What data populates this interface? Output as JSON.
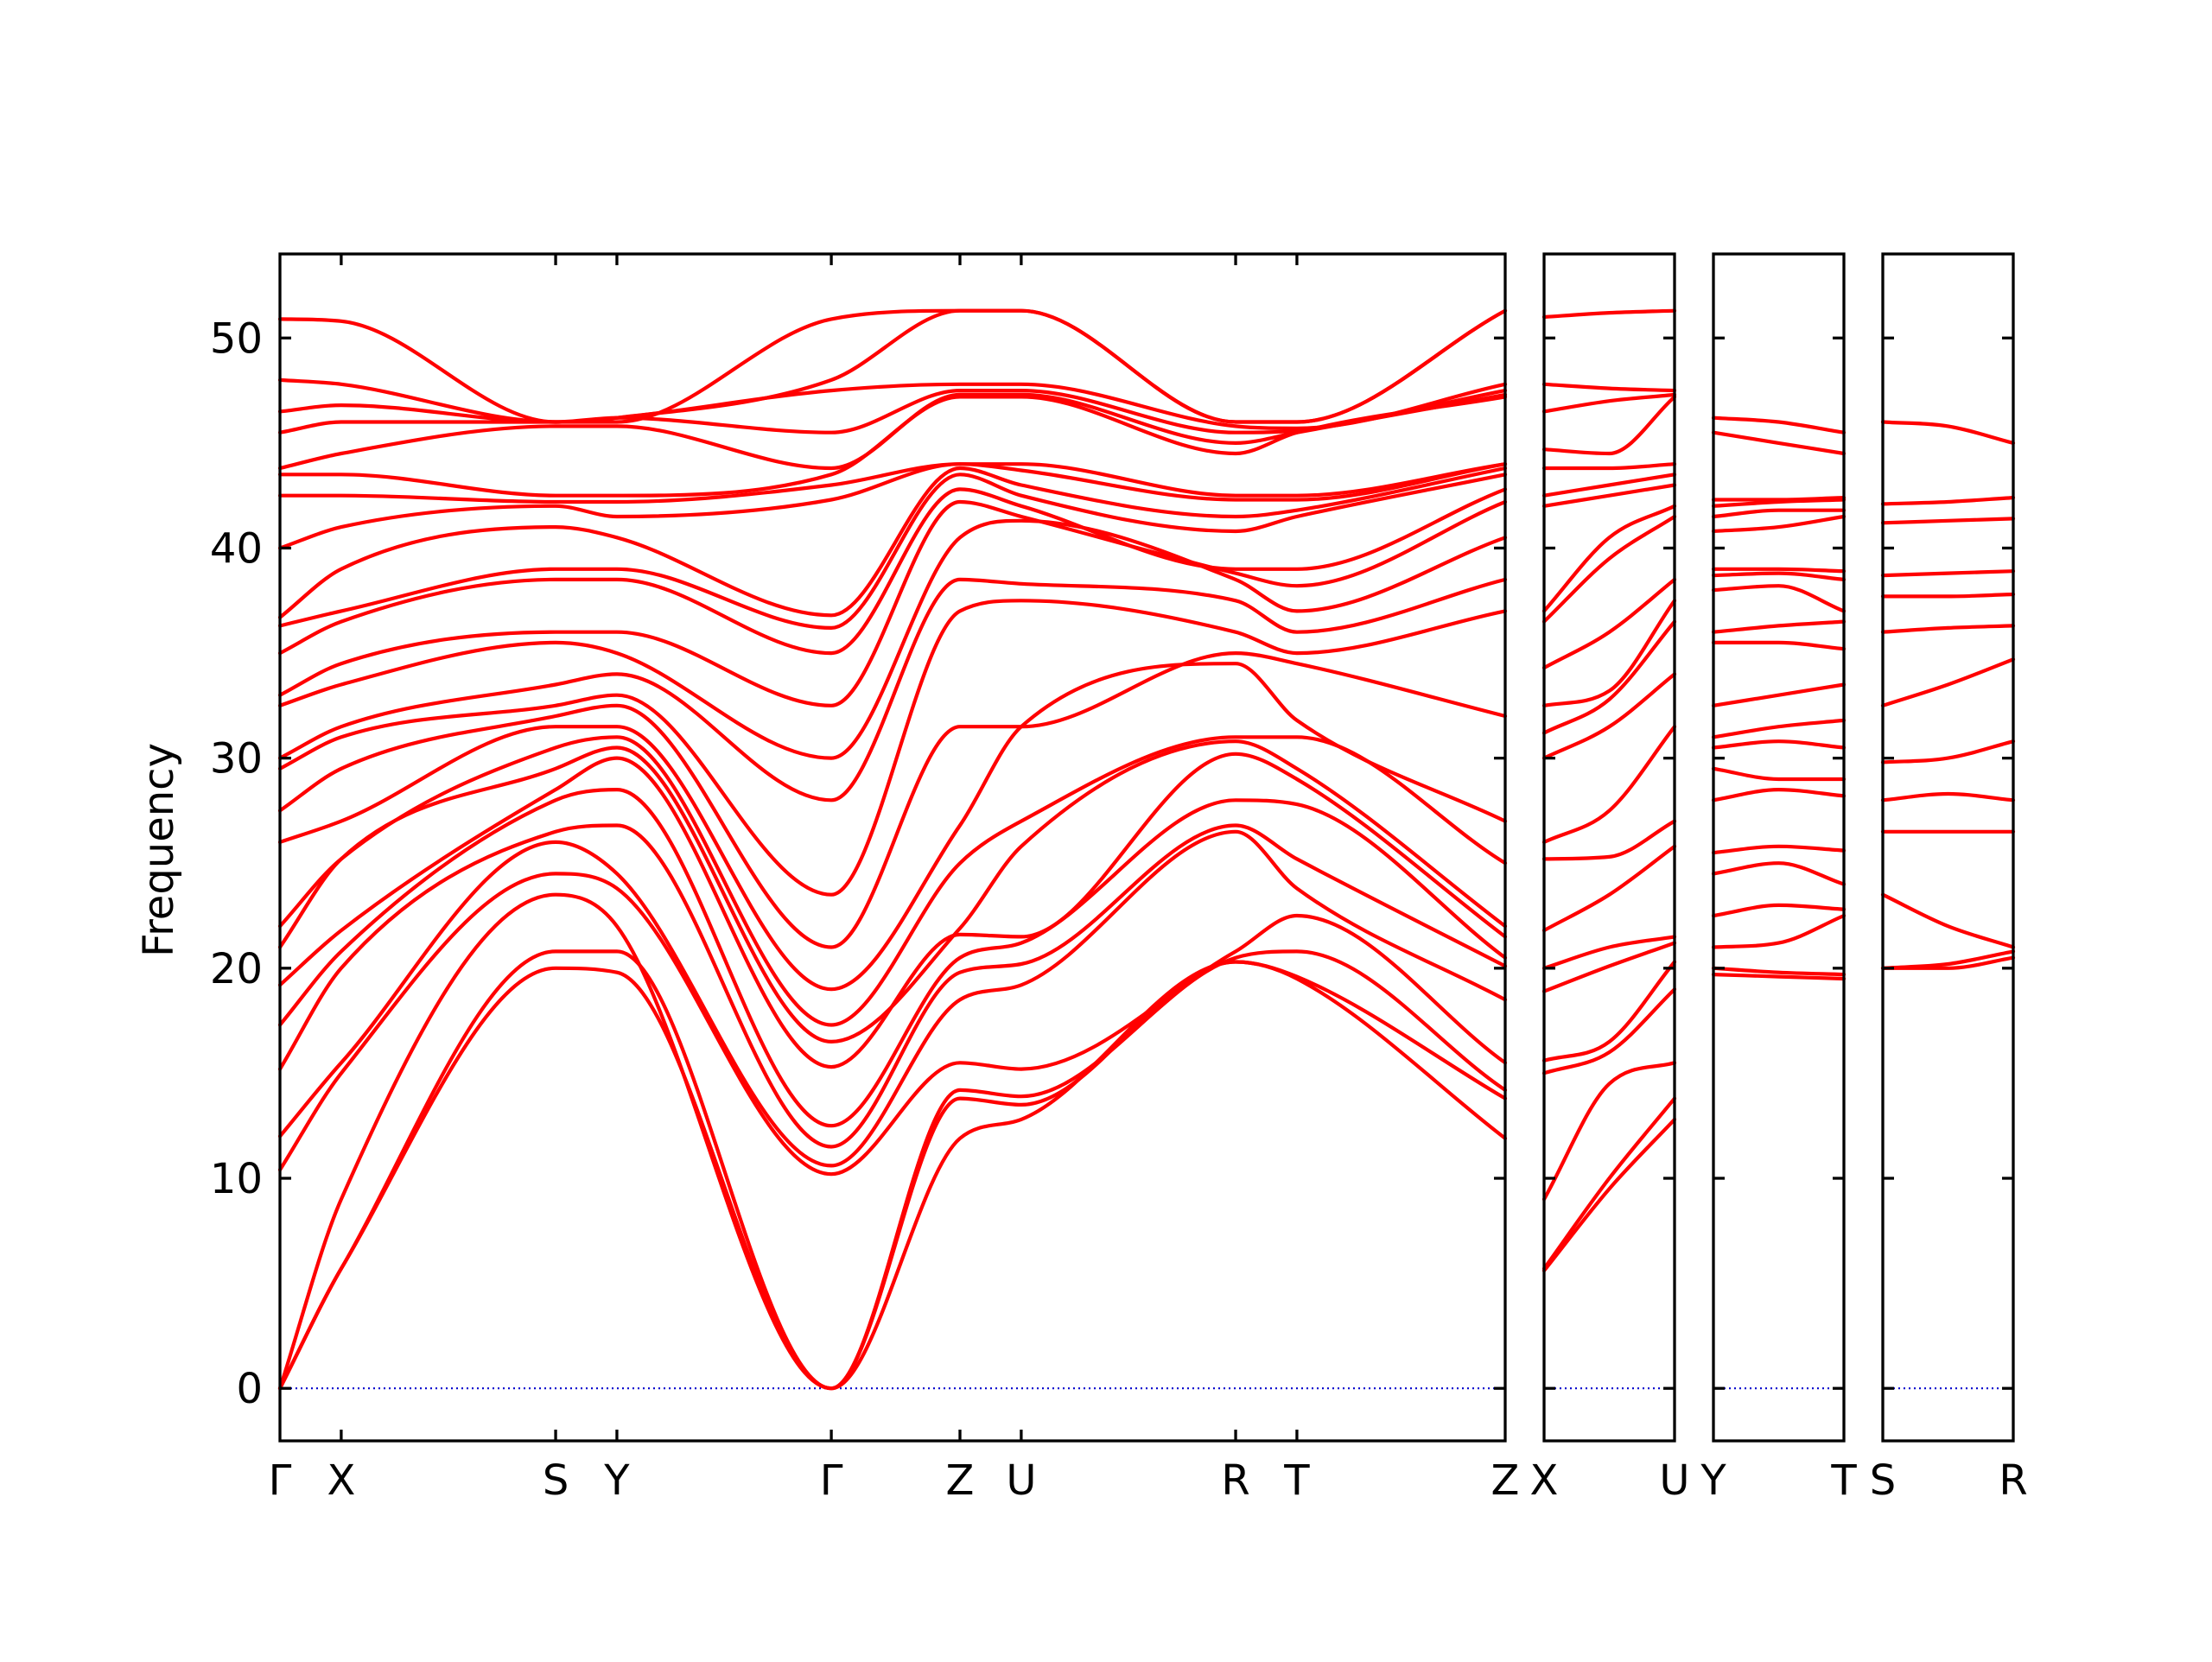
{
  "chart_data": {
    "type": "line",
    "ylabel": "Frequency",
    "ylim": [
      -2.5,
      54
    ],
    "yticks": [
      0,
      10,
      20,
      30,
      40,
      50
    ],
    "band_color": "#ff0000",
    "zero_line_color": "#0000cc",
    "grid": false,
    "legend": "none",
    "panels": [
      {
        "kpoints": [
          {
            "label": "Γ",
            "x": 0.0
          },
          {
            "label": "X",
            "x": 0.05
          },
          {
            "label": "S",
            "x": 0.225
          },
          {
            "label": "Y",
            "x": 0.275
          },
          {
            "label": "Γ",
            "x": 0.45
          },
          {
            "label": "Z",
            "x": 0.555
          },
          {
            "label": "U",
            "x": 0.605
          },
          {
            "label": "R",
            "x": 0.78
          },
          {
            "label": "T",
            "x": 0.83
          },
          {
            "label": "Z",
            "x": 1.0
          }
        ],
        "bands": [
          [
            0.0,
            5.7,
            20.0,
            19.8,
            0.0,
            11.9,
            12.8,
            20.3,
            19.5,
            11.9
          ],
          [
            0.0,
            5.7,
            20.8,
            20.8,
            0.0,
            13.8,
            13.5,
            20.3,
            19.6,
            13.8
          ],
          [
            0.0,
            9.0,
            23.5,
            22.0,
            0.0,
            14.2,
            13.9,
            20.5,
            20.8,
            14.2
          ],
          [
            10.4,
            15.0,
            24.5,
            23.8,
            10.2,
            15.5,
            15.2,
            20.8,
            22.5,
            15.5
          ],
          [
            12.0,
            15.5,
            26.0,
            24.5,
            10.6,
            18.5,
            19.2,
            26.5,
            23.8,
            18.5
          ],
          [
            15.2,
            20.0,
            26.5,
            26.8,
            11.5,
            19.8,
            20.2,
            26.8,
            25.2,
            20.1
          ],
          [
            17.3,
            20.8,
            28.0,
            28.5,
            12.5,
            20.5,
            21.2,
            28.0,
            27.8,
            20.5
          ],
          [
            19.2,
            21.8,
            28.5,
            30.0,
            15.3,
            21.6,
            21.5,
            30.2,
            29.0,
            21.5
          ],
          [
            21.0,
            25.2,
            29.5,
            30.5,
            16.5,
            21.9,
            25.8,
            30.8,
            29.5,
            22.0
          ],
          [
            22.0,
            25.2,
            30.5,
            31.0,
            17.3,
            25.0,
            27.0,
            31.0,
            31.0,
            25.0
          ],
          [
            26.0,
            27.0,
            31.5,
            31.5,
            19.0,
            26.8,
            31.5,
            34.5,
            31.8,
            27.0
          ],
          [
            27.5,
            29.5,
            32.0,
            32.5,
            21.0,
            31.5,
            31.5,
            35.0,
            34.5,
            32.0
          ],
          [
            29.5,
            31.0,
            32.5,
            33.0,
            23.5,
            37.0,
            37.5,
            36.0,
            35.0,
            37.0
          ],
          [
            30.0,
            31.5,
            33.5,
            34.0,
            28.0,
            38.5,
            38.3,
            37.5,
            36.0,
            38.5
          ],
          [
            32.5,
            33.5,
            35.5,
            35.0,
            30.0,
            40.5,
            41.3,
            38.5,
            37.0,
            40.5
          ],
          [
            33.0,
            34.5,
            36.0,
            36.0,
            32.5,
            42.2,
            41.5,
            38.8,
            38.2,
            42.2
          ],
          [
            35.0,
            36.5,
            38.5,
            38.5,
            35.0,
            42.8,
            42.0,
            39.0,
            39.0,
            42.8
          ],
          [
            36.3,
            37.0,
            39.0,
            39.0,
            36.2,
            43.5,
            42.5,
            40.8,
            41.5,
            43.5
          ],
          [
            36.7,
            39.0,
            41.0,
            40.5,
            36.8,
            43.8,
            43.0,
            41.5,
            41.8,
            43.8
          ],
          [
            40.0,
            41.0,
            42.0,
            41.5,
            42.3,
            44.0,
            43.7,
            42.3,
            42.3,
            44.0
          ],
          [
            42.5,
            42.5,
            42.2,
            42.2,
            43.0,
            44.0,
            44.0,
            42.5,
            42.5,
            44.0
          ],
          [
            43.5,
            43.5,
            42.5,
            42.5,
            43.5,
            47.2,
            47.2,
            44.5,
            45.5,
            47.2
          ],
          [
            43.8,
            44.5,
            45.8,
            45.8,
            43.8,
            47.3,
            47.3,
            45.0,
            45.5,
            47.3
          ],
          [
            45.5,
            46.0,
            46.0,
            46.2,
            45.5,
            47.5,
            47.5,
            45.5,
            45.6,
            47.5
          ],
          [
            46.5,
            46.8,
            46.0,
            46.2,
            47.5,
            47.8,
            47.8,
            45.8,
            45.7,
            47.8
          ],
          [
            48.0,
            47.8,
            46.0,
            46.2,
            48.0,
            51.3,
            51.3,
            46.0,
            46.0,
            51.3
          ],
          [
            50.9,
            50.8,
            46.0,
            46.0,
            50.9,
            51.3,
            51.3,
            46.0,
            46.0,
            51.3
          ]
        ]
      },
      {
        "kpoints": [
          {
            "label": "X",
            "x": 0.0
          },
          {
            "label": "U",
            "x": 1.0
          }
        ],
        "bands": [
          [
            5.6,
            9.5,
            12.8
          ],
          [
            5.7,
            10.0,
            13.8
          ],
          [
            9.0,
            14.5,
            15.5
          ],
          [
            15.0,
            16.0,
            19.0
          ],
          [
            15.6,
            16.5,
            20.3
          ],
          [
            18.9,
            20.1,
            21.2
          ],
          [
            20.0,
            21.0,
            21.5
          ],
          [
            21.8,
            23.5,
            25.8
          ],
          [
            25.2,
            25.3,
            27.0
          ],
          [
            26.0,
            27.5,
            31.5
          ],
          [
            30.0,
            31.5,
            34.0
          ],
          [
            31.2,
            32.8,
            36.5
          ],
          [
            32.5,
            33.2,
            37.5
          ],
          [
            34.3,
            36.0,
            38.5
          ],
          [
            36.5,
            39.5,
            41.5
          ],
          [
            37.0,
            40.5,
            42.0
          ],
          [
            42.0,
            42.5,
            43.0
          ],
          [
            42.5,
            43.0,
            43.5
          ],
          [
            43.8,
            43.8,
            44.0
          ],
          [
            44.7,
            44.5,
            47.2
          ],
          [
            46.5,
            47.0,
            47.3
          ],
          [
            47.8,
            47.6,
            47.5
          ],
          [
            51.0,
            51.2,
            51.3
          ]
        ]
      },
      {
        "kpoints": [
          {
            "label": "Y",
            "x": 0.0
          },
          {
            "label": "T",
            "x": 1.0
          }
        ],
        "bands": [
          [
            19.7,
            19.6,
            19.5
          ],
          [
            20.0,
            19.8,
            19.7
          ],
          [
            21.0,
            21.2,
            22.5
          ],
          [
            22.5,
            23.0,
            22.8
          ],
          [
            24.5,
            25.0,
            24.0
          ],
          [
            25.5,
            25.8,
            25.6
          ],
          [
            28.0,
            28.5,
            28.2
          ],
          [
            29.5,
            29.0,
            29.0
          ],
          [
            30.5,
            30.8,
            30.5
          ],
          [
            31.0,
            31.5,
            31.8
          ],
          [
            32.5,
            33.0,
            33.5
          ],
          [
            35.5,
            35.5,
            35.2
          ],
          [
            36.0,
            36.3,
            36.5
          ],
          [
            38.0,
            38.2,
            37.0
          ],
          [
            38.7,
            38.8,
            38.5
          ],
          [
            39.0,
            39.0,
            38.9
          ],
          [
            40.8,
            41.0,
            41.5
          ],
          [
            41.5,
            41.8,
            41.8
          ],
          [
            42.0,
            42.2,
            42.3
          ],
          [
            42.3,
            42.3,
            42.4
          ],
          [
            45.5,
            45.0,
            44.5
          ],
          [
            46.2,
            46.0,
            45.5
          ]
        ]
      },
      {
        "kpoints": [
          {
            "label": "S",
            "x": 0.0
          },
          {
            "label": "R",
            "x": 1.0
          }
        ],
        "bands": [
          [
            20.0,
            20.0,
            20.5
          ],
          [
            20.0,
            20.2,
            20.8
          ],
          [
            23.5,
            22.0,
            21.0
          ],
          [
            26.5,
            26.5,
            26.5
          ],
          [
            28.0,
            28.3,
            28.0
          ],
          [
            29.8,
            30.0,
            30.8
          ],
          [
            32.5,
            33.5,
            34.7
          ],
          [
            36.0,
            36.2,
            36.3
          ],
          [
            37.7,
            37.7,
            37.8
          ],
          [
            38.7,
            38.8,
            38.9
          ],
          [
            41.2,
            41.3,
            41.4
          ],
          [
            42.1,
            42.2,
            42.4
          ],
          [
            46.0,
            45.8,
            45.0
          ]
        ]
      }
    ]
  }
}
